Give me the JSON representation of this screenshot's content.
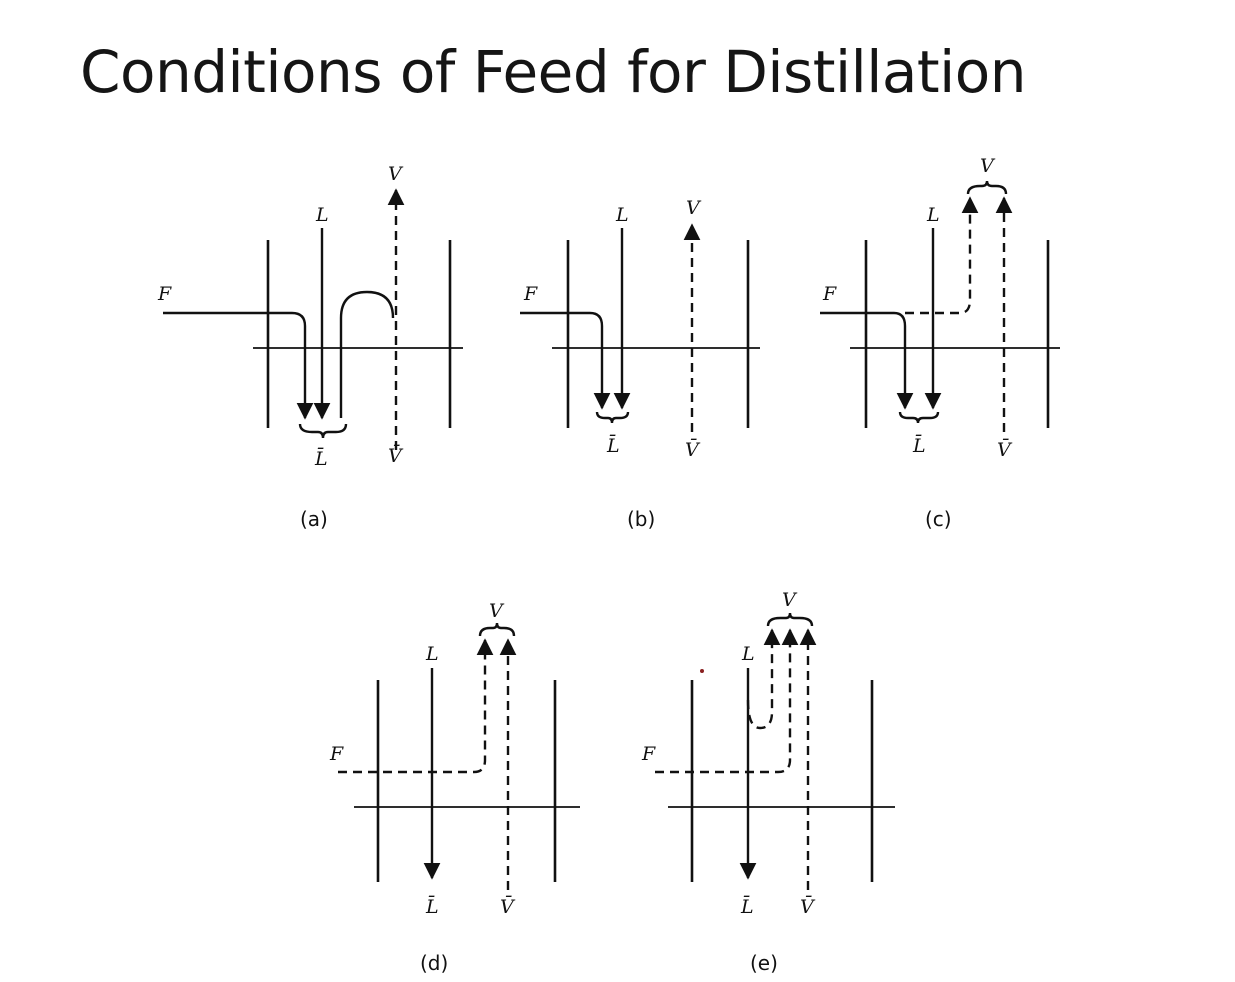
{
  "title": "Conditions of Feed for Distillation",
  "panels": [
    {
      "id": "a",
      "caption": "(a)",
      "labels": {
        "feed": "F",
        "liquid_in": "L",
        "vapor_out": "V",
        "liquid_out": "L̄",
        "vapor_in": "V̄"
      }
    },
    {
      "id": "b",
      "caption": "(b)",
      "labels": {
        "feed": "F",
        "liquid_in": "L",
        "vapor_out": "V",
        "liquid_out": "L̄",
        "vapor_in": "V̄"
      }
    },
    {
      "id": "c",
      "caption": "(c)",
      "labels": {
        "feed": "F",
        "liquid_in": "L",
        "vapor_out": "V",
        "liquid_out": "L̄",
        "vapor_in": "V̄"
      }
    },
    {
      "id": "d",
      "caption": "(d)",
      "labels": {
        "feed": "F",
        "liquid_in": "L",
        "vapor_out": "V",
        "liquid_out": "L̄",
        "vapor_in": "V̄"
      }
    },
    {
      "id": "e",
      "caption": "(e)",
      "labels": {
        "feed": "F",
        "liquid_in": "L",
        "vapor_out": "V",
        "liquid_out": "L̄",
        "vapor_in": "V̄"
      }
    }
  ]
}
